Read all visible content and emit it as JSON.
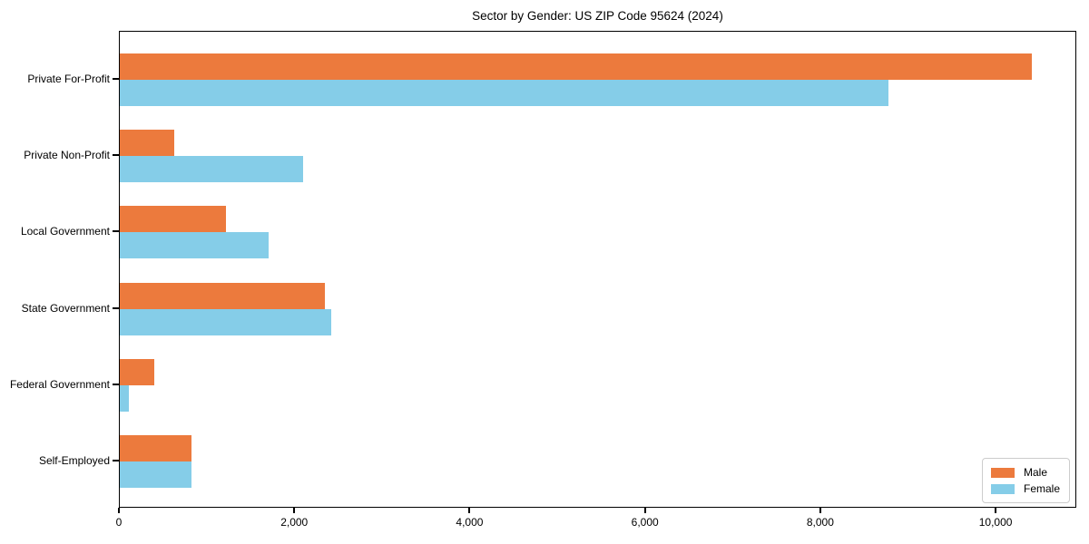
{
  "chart_data": {
    "type": "bar",
    "orientation": "horizontal",
    "title": "Sector by Gender: US ZIP Code 95624 (2024)",
    "categories": [
      "Private For-Profit",
      "Private Non-Profit",
      "Local Government",
      "State Government",
      "Federal Government",
      "Self-Employed"
    ],
    "series": [
      {
        "name": "Male",
        "color": "#ec7a3d",
        "values": [
          10400,
          620,
          1210,
          2340,
          390,
          820
        ]
      },
      {
        "name": "Female",
        "color": "#85cde8",
        "values": [
          8770,
          2090,
          1700,
          2410,
          100,
          820
        ]
      }
    ],
    "xlim": [
      0,
      10920
    ],
    "x_ticks": [
      0,
      2000,
      4000,
      6000,
      8000,
      10000
    ],
    "x_tick_labels": [
      "0",
      "2,000",
      "4,000",
      "6,000",
      "8,000",
      "10,000"
    ],
    "grid": false,
    "legend_position": "lower right",
    "spine_color": "#000000"
  }
}
